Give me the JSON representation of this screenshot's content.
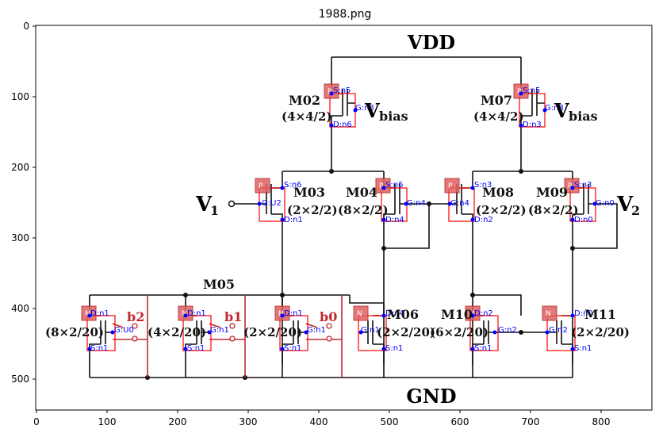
{
  "title": "1988.png",
  "axes": {
    "x_ticks": [
      "0",
      "100",
      "200",
      "300",
      "400",
      "500",
      "600",
      "700",
      "800"
    ],
    "y_ticks": [
      "0",
      "100",
      "200",
      "300",
      "400",
      "500"
    ]
  },
  "labels": {
    "vdd": "VDD",
    "gnd": "GND",
    "v1": "V",
    "v1_sub": "1",
    "v2": "V",
    "v2_sub": "2",
    "vbias_left": "V",
    "vbias_left_sub": "bias",
    "vbias_right": "V",
    "vbias_right_sub": "bias",
    "m05": "M05",
    "b0": "b0",
    "b1": "b1",
    "b2": "b2"
  },
  "devices": {
    "m02": {
      "name": "M02",
      "size": "(4×4/2)",
      "tag": "P",
      "s": "S:n5",
      "g": "G:n3",
      "d": "D:n6"
    },
    "m07": {
      "name": "M07",
      "size": "(4×4/2)",
      "tag": "P",
      "s": "S:n5",
      "g": "G:n3",
      "d": "D:n3"
    },
    "m03": {
      "name": "M03",
      "size": "(2×2/2)",
      "tag": "P",
      "s": "S:n6",
      "g": "G:U2",
      "d": "D:n1"
    },
    "m04": {
      "name": "M04",
      "size": "(8×2/2)",
      "tag": "P",
      "s": "S:n6",
      "g": "G:n4",
      "d": "D:n4"
    },
    "m08": {
      "name": "M08",
      "size": "(2×2/2)",
      "tag": "P",
      "s": "S:n3",
      "g": "G:n4",
      "d": "D:n2"
    },
    "m09": {
      "name": "M09",
      "size": "(8×2/2)",
      "tag": "P",
      "s": "S:n3",
      "g": "G:n0",
      "d": "D:n0"
    },
    "mb2": {
      "size": "(8×2/20)",
      "tag": "N",
      "s": "S:n1",
      "g": "G:U0",
      "d": "D:n1"
    },
    "mb1": {
      "size": "(4×2/20)",
      "tag": "N",
      "s": "S:n1",
      "g": "G:n1",
      "d": "D:n1"
    },
    "mb0": {
      "size": "(2×2/20)",
      "tag": "N",
      "s": "S:n1",
      "g": "G:n1",
      "d": "D:n1"
    },
    "m06": {
      "name": "M06",
      "size": "(2×2/20)",
      "tag": "N",
      "s": "S:n1",
      "g": "G:n1",
      "d": "D:n4"
    },
    "m10": {
      "name": "M10",
      "size": "(6×2/20)",
      "tag": "N",
      "s": "S:n1",
      "g": "G:n2",
      "d": "D:n2"
    },
    "m11": {
      "name": "M11",
      "size": "(2×2/20)",
      "tag": "N",
      "s": "S:n1",
      "g": "G:n2",
      "d": "D:n0"
    }
  }
}
